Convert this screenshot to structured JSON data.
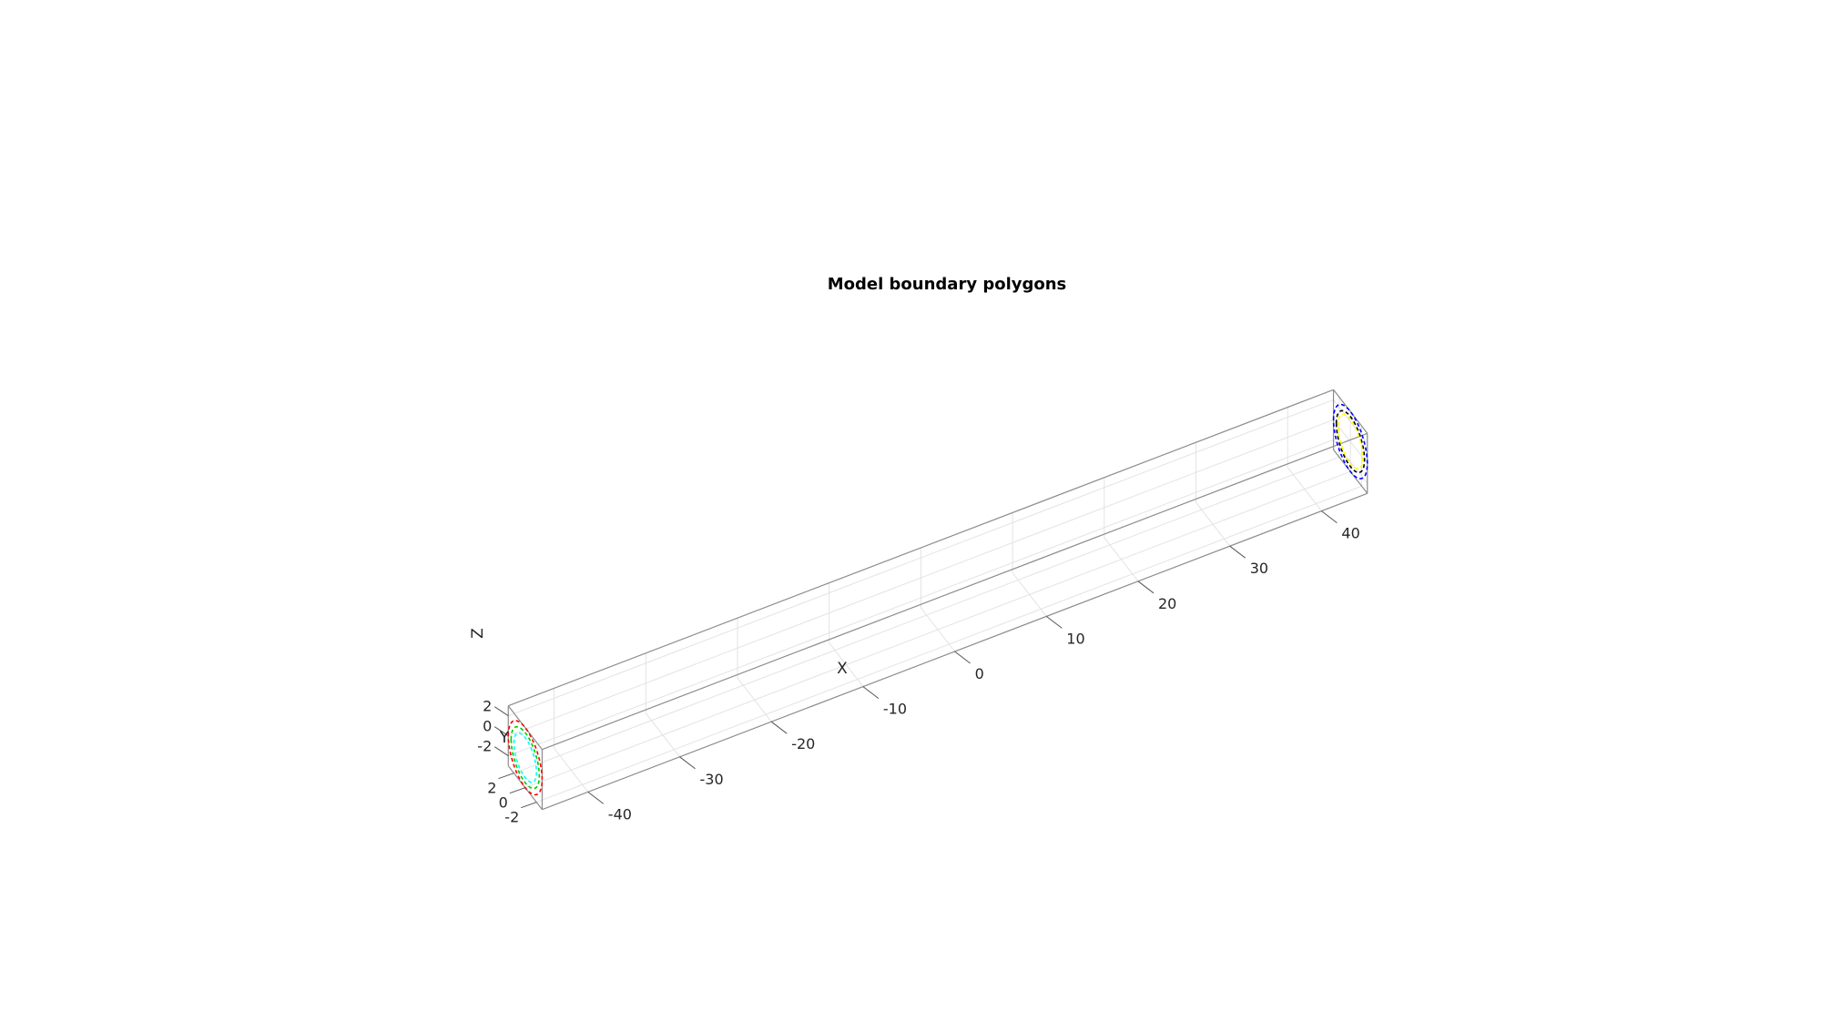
{
  "chart_data": {
    "type": "line3d",
    "title": "Model boundary polygons",
    "xlabel": "X",
    "ylabel": "Y",
    "zlabel": "Z",
    "xlim": [
      -45,
      45
    ],
    "ylim": [
      -3,
      3
    ],
    "zlim": [
      -3,
      3
    ],
    "xticks": [
      -40,
      -30,
      -20,
      -10,
      0,
      10,
      20,
      30,
      40
    ],
    "yticks": [
      -2,
      0,
      2
    ],
    "zticks": [
      -2,
      0,
      2
    ],
    "grid": true,
    "view": "3D isometric",
    "series": [
      {
        "x": -45,
        "radius": 3.0,
        "color": "#ff0000",
        "style": "dashed-points"
      },
      {
        "x": -45,
        "radius": 2.5,
        "color": "#00cc00",
        "style": "dashed-points"
      },
      {
        "x": -45,
        "radius": 2.0,
        "color": "#00ffff",
        "style": "dashed-points"
      },
      {
        "x": 45,
        "radius": 3.0,
        "color": "#0000ff",
        "style": "dashed-points"
      },
      {
        "x": 45,
        "radius": 2.5,
        "color": "#000000",
        "style": "dashed-points"
      },
      {
        "x": 45,
        "radius": 2.2,
        "color": "#ffff00",
        "style": "dashed-points"
      }
    ]
  }
}
